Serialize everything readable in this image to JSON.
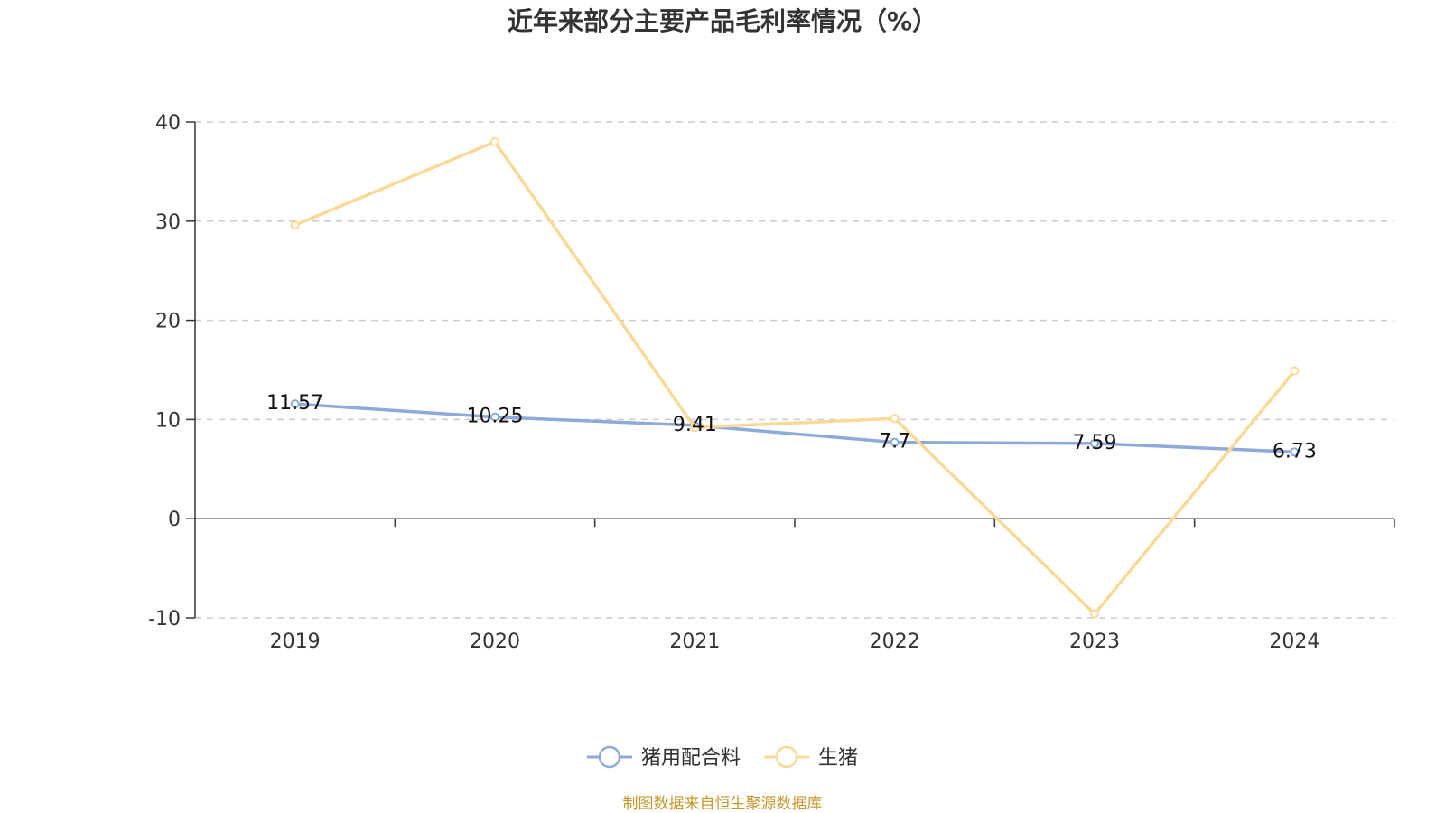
{
  "chart_data": {
    "type": "line",
    "title": "近年来部分主要产品毛利率情况（%）",
    "categories": [
      "2019",
      "2020",
      "2021",
      "2022",
      "2023",
      "2024"
    ],
    "ylim": [
      -10,
      40
    ],
    "yticks": [
      -10,
      0,
      10,
      20,
      30,
      40
    ],
    "grid": true,
    "legend_position": "bottom",
    "series": [
      {
        "name": "猪用配合料",
        "color": "#8eaadb",
        "values": [
          11.57,
          10.25,
          9.41,
          7.7,
          7.59,
          6.73
        ],
        "labels": [
          "11.57",
          "10.25",
          "9.41",
          "7.7",
          "7.59",
          "6.73"
        ]
      },
      {
        "name": "生猪",
        "color": "#fad996",
        "values": [
          29.6,
          38.0,
          9.2,
          10.1,
          -9.6,
          14.9
        ]
      }
    ]
  },
  "source": "制图数据来自恒生聚源数据库"
}
